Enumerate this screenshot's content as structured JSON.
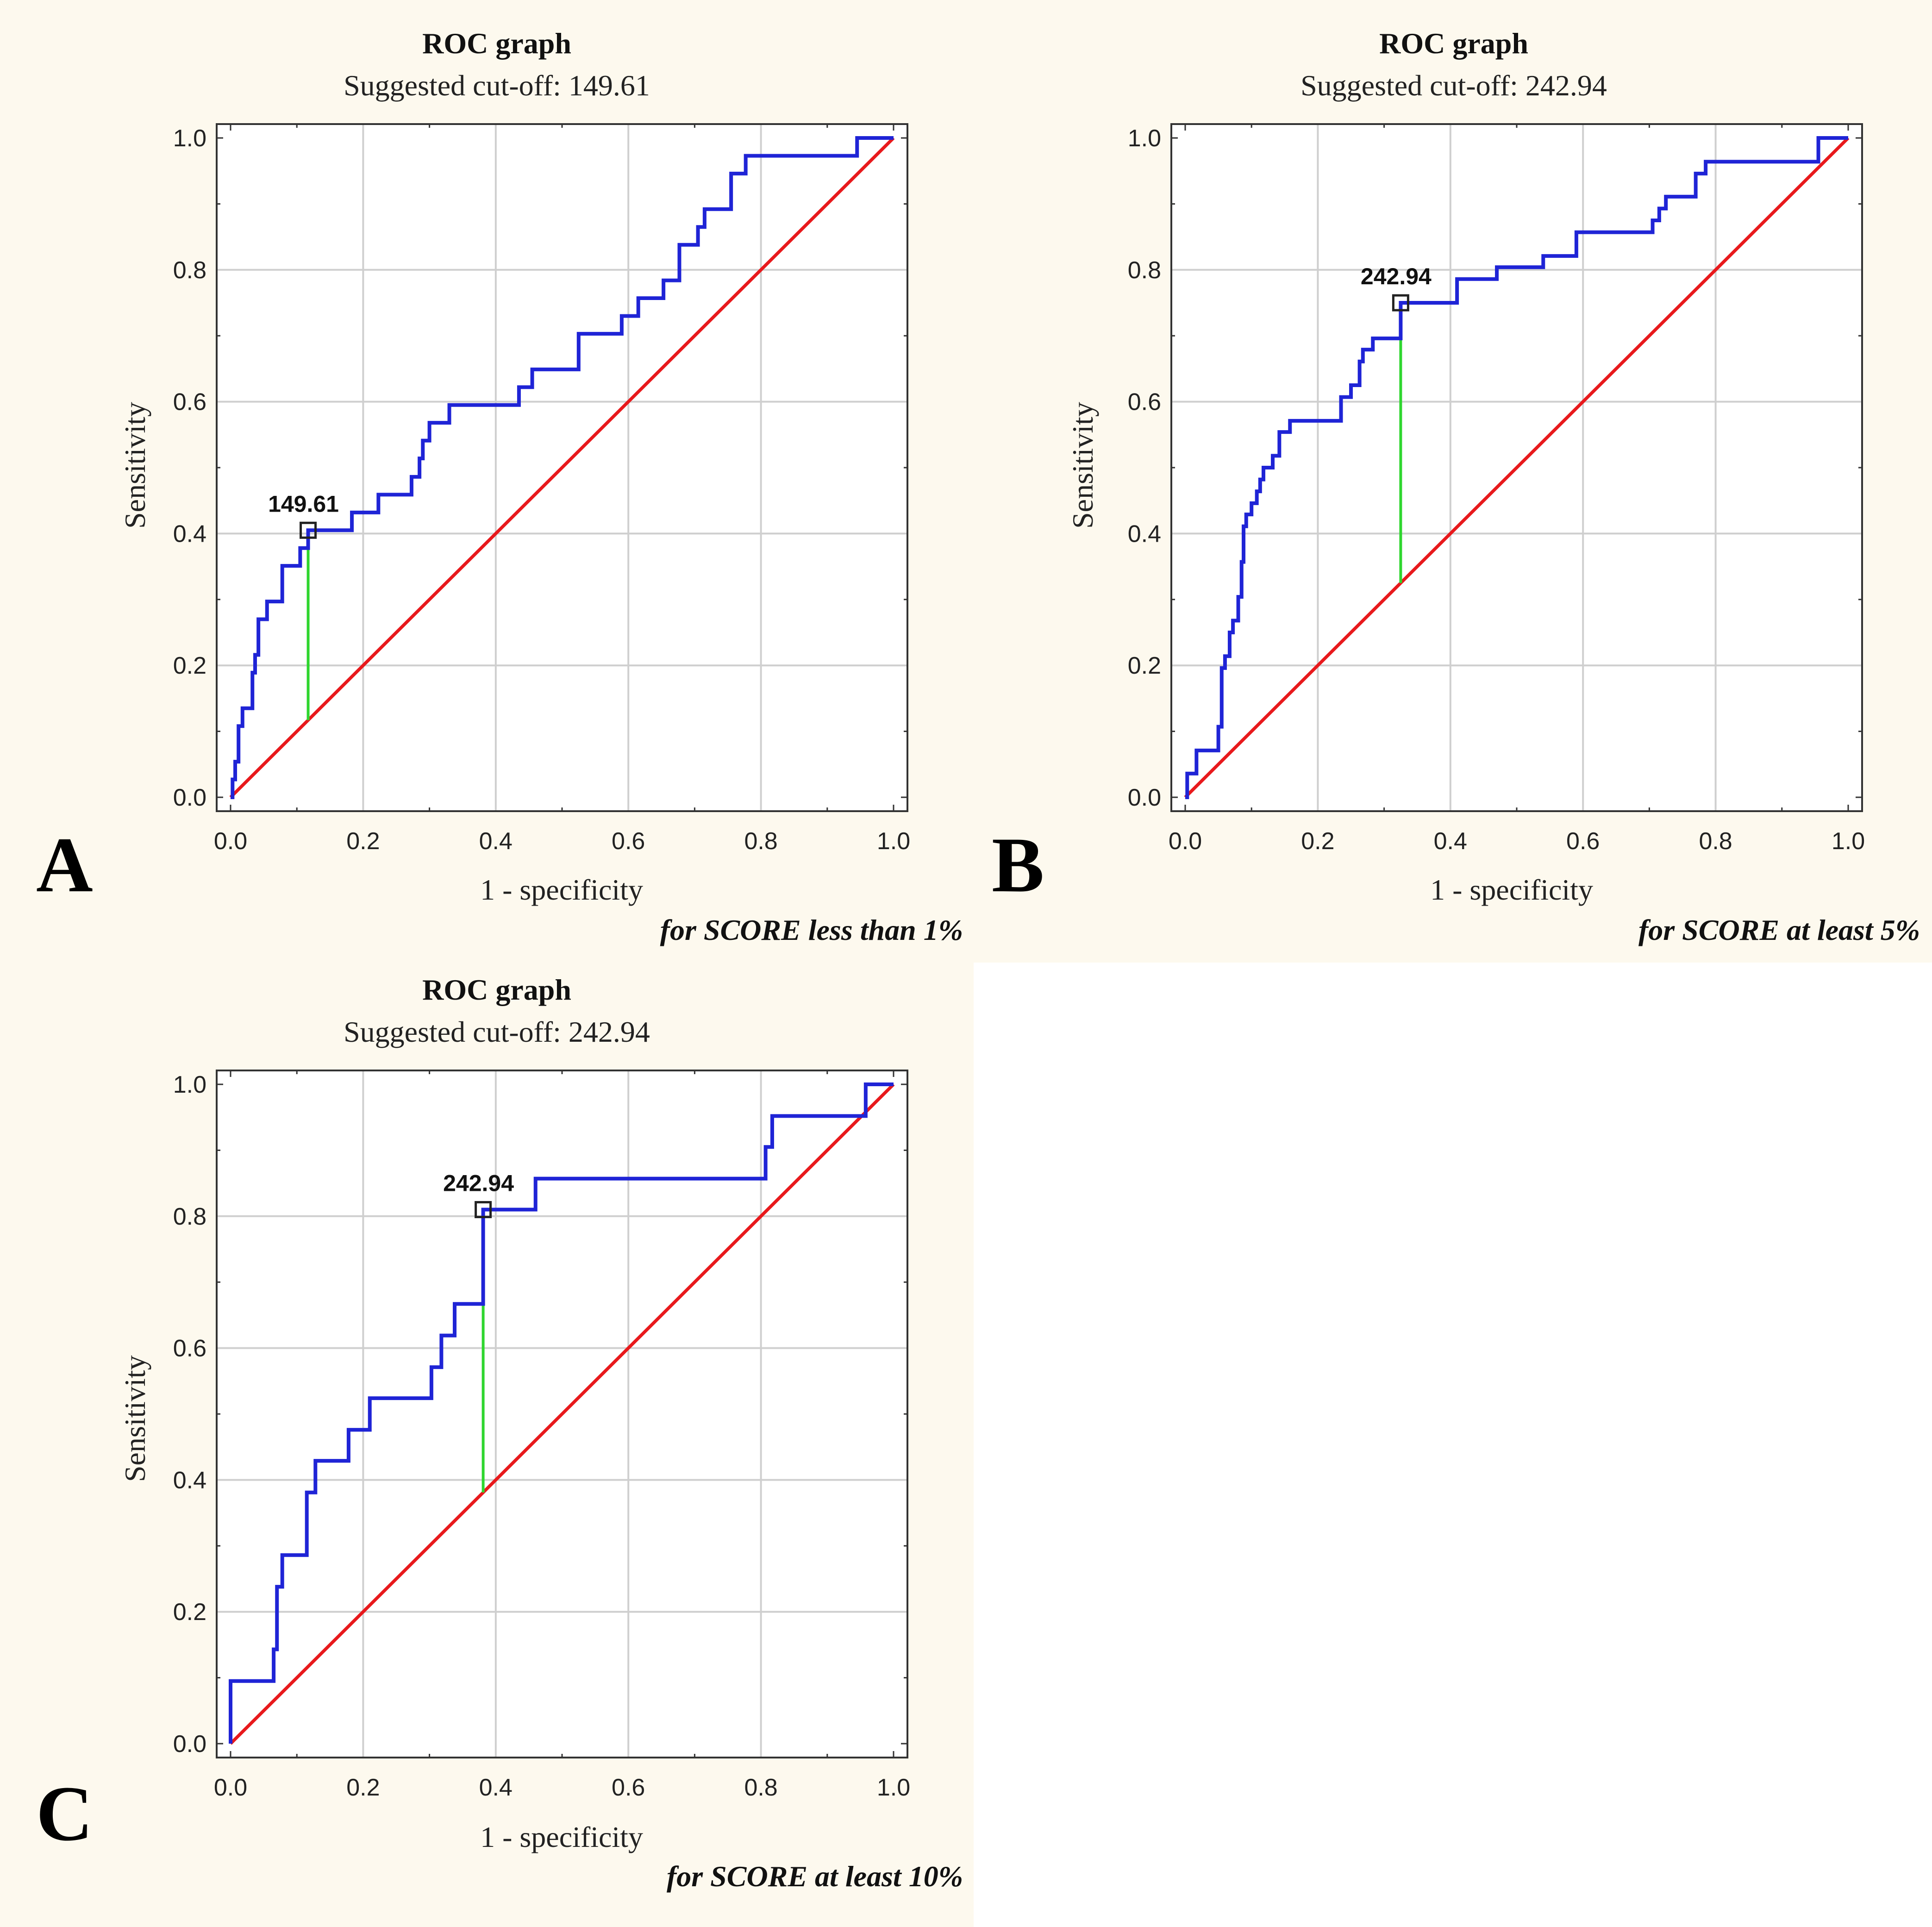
{
  "colors": {
    "background": "#fdf9ee",
    "plot_bg": "#ffffff",
    "grid": "#cfcfcf",
    "roc_curve": "#1f24d6",
    "reference_line": "#e8191c",
    "cutoff_line": "#2fd62f",
    "marker": "#222222"
  },
  "chart_data": [
    {
      "panel": "A",
      "type": "line",
      "title": "ROC graph",
      "subtitle": "Suggested cut-off: 149.61",
      "xlabel": "1 - specificity",
      "ylabel": "Sensitivity",
      "note": "for SCORE less than 1%",
      "xlim": [
        0,
        1
      ],
      "ylim": [
        0,
        1
      ],
      "xticks": [
        "0.0",
        "0.2",
        "0.4",
        "0.6",
        "0.8",
        "1.0"
      ],
      "yticks": [
        "0.0",
        "0.2",
        "0.4",
        "0.6",
        "0.8",
        "1.0"
      ],
      "grid": true,
      "cutoff": {
        "label": "149.61",
        "x": 0.117,
        "y": 0.405
      },
      "series": [
        {
          "name": "ROC curve",
          "x": [
            0,
            0.003,
            0.003,
            0.007,
            0.007,
            0.012,
            0.012,
            0.018,
            0.018,
            0.033,
            0.033,
            0.037,
            0.037,
            0.042,
            0.042,
            0.055,
            0.055,
            0.078,
            0.078,
            0.105,
            0.105,
            0.117,
            0.117,
            0.183,
            0.183,
            0.223,
            0.223,
            0.273,
            0.273,
            0.285,
            0.285,
            0.29,
            0.29,
            0.3,
            0.3,
            0.33,
            0.33,
            0.435,
            0.435,
            0.455,
            0.455,
            0.525,
            0.525,
            0.59,
            0.59,
            0.615,
            0.615,
            0.653,
            0.653,
            0.677,
            0.677,
            0.705,
            0.705,
            0.715,
            0.715,
            0.755,
            0.755,
            0.777,
            0.777,
            0.945,
            0.945,
            1.0
          ],
          "y": [
            0,
            0,
            0.027,
            0.027,
            0.054,
            0.054,
            0.108,
            0.108,
            0.135,
            0.135,
            0.189,
            0.189,
            0.216,
            0.216,
            0.27,
            0.27,
            0.297,
            0.297,
            0.351,
            0.351,
            0.378,
            0.378,
            0.405,
            0.405,
            0.432,
            0.432,
            0.459,
            0.459,
            0.486,
            0.486,
            0.514,
            0.514,
            0.541,
            0.541,
            0.568,
            0.568,
            0.595,
            0.595,
            0.622,
            0.622,
            0.649,
            0.649,
            0.703,
            0.703,
            0.73,
            0.73,
            0.757,
            0.757,
            0.784,
            0.784,
            0.838,
            0.838,
            0.865,
            0.865,
            0.892,
            0.892,
            0.946,
            0.946,
            0.973,
            0.973,
            1.0,
            1.0
          ]
        },
        {
          "name": "Reference",
          "x": [
            0,
            1
          ],
          "y": [
            0,
            1
          ]
        }
      ]
    },
    {
      "panel": "B",
      "type": "line",
      "title": "ROC graph",
      "subtitle": "Suggested cut-off: 242.94",
      "xlabel": "1 - specificity",
      "ylabel": "Sensitivity",
      "note": "for SCORE at least 5%",
      "xlim": [
        0,
        1
      ],
      "ylim": [
        0,
        1
      ],
      "xticks": [
        "0.0",
        "0.2",
        "0.4",
        "0.6",
        "0.8",
        "1.0"
      ],
      "yticks": [
        "0.0",
        "0.2",
        "0.4",
        "0.6",
        "0.8",
        "1.0"
      ],
      "grid": true,
      "cutoff": {
        "label": "242.94",
        "x": 0.325,
        "y": 0.75
      },
      "series": [
        {
          "name": "ROC curve",
          "x": [
            0,
            0.003,
            0.003,
            0.017,
            0.017,
            0.05,
            0.05,
            0.055,
            0.055,
            0.06,
            0.06,
            0.067,
            0.067,
            0.072,
            0.072,
            0.08,
            0.08,
            0.085,
            0.085,
            0.088,
            0.088,
            0.092,
            0.092,
            0.1,
            0.1,
            0.108,
            0.108,
            0.113,
            0.113,
            0.118,
            0.118,
            0.132,
            0.132,
            0.142,
            0.142,
            0.158,
            0.158,
            0.235,
            0.235,
            0.25,
            0.25,
            0.263,
            0.263,
            0.268,
            0.268,
            0.283,
            0.283,
            0.29,
            0.29,
            0.295,
            0.295,
            0.3,
            0.3,
            0.308,
            0.308,
            0.325,
            0.325,
            0.41,
            0.41,
            0.47,
            0.47,
            0.54,
            0.54,
            0.59,
            0.59,
            0.705,
            0.705,
            0.715,
            0.715,
            0.725,
            0.725,
            0.77,
            0.77,
            0.785,
            0.785,
            0.955,
            0.955,
            1.0
          ],
          "y": [
            0,
            0,
            0.036,
            0.036,
            0.071,
            0.071,
            0.107,
            0.107,
            0.196,
            0.196,
            0.214,
            0.214,
            0.25,
            0.25,
            0.268,
            0.268,
            0.304,
            0.304,
            0.357,
            0.357,
            0.411,
            0.411,
            0.429,
            0.429,
            0.446,
            0.446,
            0.464,
            0.464,
            0.482,
            0.482,
            0.5,
            0.5,
            0.518,
            0.518,
            0.554,
            0.554,
            0.571,
            0.571,
            0.607,
            0.607,
            0.625,
            0.625,
            0.661,
            0.661,
            0.679,
            0.679,
            0.696,
            0.696,
            0.696,
            0.696,
            0.696,
            0.696,
            0.696,
            0.696,
            0.696,
            0.696,
            0.75,
            0.75,
            0.786,
            0.786,
            0.804,
            0.804,
            0.821,
            0.821,
            0.857,
            0.857,
            0.875,
            0.875,
            0.893,
            0.893,
            0.911,
            0.911,
            0.946,
            0.946,
            0.964,
            0.964,
            1.0,
            1.0
          ]
        },
        {
          "name": "Reference",
          "x": [
            0,
            1
          ],
          "y": [
            0,
            1
          ]
        }
      ]
    },
    {
      "panel": "C",
      "type": "line",
      "title": "ROC graph",
      "subtitle": "Suggested cut-off: 242.94",
      "xlabel": "1 - specificity",
      "ylabel": "Sensitivity",
      "note": "for SCORE at least 10%",
      "xlim": [
        0,
        1
      ],
      "ylim": [
        0,
        1
      ],
      "xticks": [
        "0.0",
        "0.2",
        "0.4",
        "0.6",
        "0.8",
        "1.0"
      ],
      "yticks": [
        "0.0",
        "0.2",
        "0.4",
        "0.6",
        "0.8",
        "1.0"
      ],
      "grid": true,
      "cutoff": {
        "label": "242.94",
        "x": 0.381,
        "y": 0.81
      },
      "series": [
        {
          "name": "ROC curve",
          "x": [
            0,
            0,
            0.065,
            0.065,
            0.07,
            0.07,
            0.078,
            0.078,
            0.115,
            0.115,
            0.128,
            0.128,
            0.178,
            0.178,
            0.21,
            0.21,
            0.303,
            0.303,
            0.318,
            0.318,
            0.338,
            0.338,
            0.381,
            0.381,
            0.46,
            0.46,
            0.807,
            0.807,
            0.817,
            0.817,
            0.95,
            0.95,
            0.958,
            0.958,
            1.0
          ],
          "y": [
            0,
            0.095,
            0.095,
            0.143,
            0.143,
            0.238,
            0.238,
            0.286,
            0.286,
            0.381,
            0.381,
            0.429,
            0.429,
            0.476,
            0.476,
            0.524,
            0.524,
            0.571,
            0.571,
            0.619,
            0.619,
            0.667,
            0.667,
            0.81,
            0.81,
            0.857,
            0.857,
            0.905,
            0.905,
            0.952,
            0.952,
            0.952,
            0.952,
            1.0,
            1.0
          ]
        },
        {
          "name": "Reference",
          "x": [
            0,
            1
          ],
          "y": [
            0,
            1
          ]
        }
      ]
    }
  ]
}
